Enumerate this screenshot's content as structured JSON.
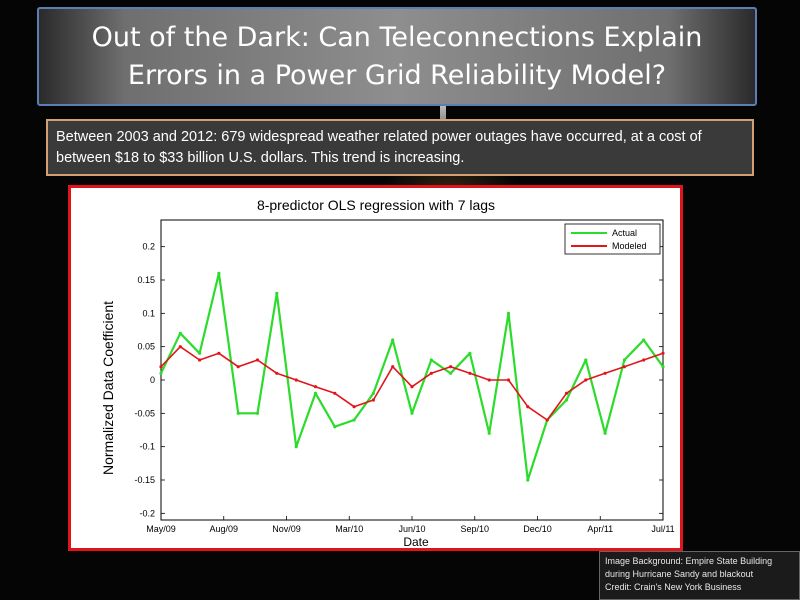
{
  "slide": {
    "title": "Out of the Dark: Can Teleconnections Explain Errors in a Power Grid Reliability Model?",
    "info": "Between  2003 and 2012: 679 widespread weather related power outages have occurred, at a cost of between $18 to $33 billion U.S. dollars. This trend is increasing.",
    "credit_lines": [
      "Image Background: Empire State Building",
      "during Hurricane Sandy and blackout",
      "Credit: Crain's New York Business"
    ]
  },
  "colors": {
    "actual": "#2bdc2b",
    "modeled": "#e2161a",
    "chart_border": "#e0141b",
    "info_border": "#d3a071",
    "title_border": "#5b7fb5"
  },
  "chart_data": {
    "type": "line",
    "title": "8-predictor OLS regression with 7 lags",
    "xlabel": "Date",
    "ylabel": "Normalized Data Coefficient",
    "xlim": [
      "May/09",
      "Jul/11"
    ],
    "ylim": [
      -0.21,
      0.24
    ],
    "x_ticks": [
      "May/09",
      "Aug/09",
      "Nov/09",
      "Mar/10",
      "Jun/10",
      "Sep/10",
      "Dec/10",
      "Apr/11",
      "Jul/11"
    ],
    "y_ticks": [
      "-0.2",
      "-0.15",
      "-0.1",
      "-0.05",
      "0",
      "0.05",
      "0.1",
      "0.15",
      "0.2"
    ],
    "legend_position": "top-right",
    "grid": false,
    "x": [
      "May/09",
      "Jun/09",
      "Jul/09",
      "Aug/09",
      "Sep/09",
      "Oct/09",
      "Nov/09",
      "Dec/09",
      "Jan/10",
      "Feb/10",
      "Mar/10",
      "Apr/10",
      "May/10",
      "Jun/10",
      "Jul/10",
      "Aug/10",
      "Sep/10",
      "Oct/10",
      "Nov/10",
      "Dec/10",
      "Jan/11",
      "Feb/11",
      "Mar/11",
      "Apr/11",
      "May/11",
      "Jun/11",
      "Jul/11"
    ],
    "series": [
      {
        "name": "Actual",
        "values": [
          0.01,
          0.07,
          0.04,
          0.16,
          -0.05,
          -0.05,
          0.13,
          -0.1,
          -0.02,
          -0.07,
          -0.06,
          -0.02,
          0.06,
          -0.05,
          0.03,
          0.01,
          0.04,
          -0.08,
          0.1,
          -0.15,
          -0.06,
          -0.03,
          0.03,
          -0.08,
          0.03,
          0.06,
          0.02
        ]
      },
      {
        "name": "Modeled",
        "values": [
          0.02,
          0.05,
          0.03,
          0.04,
          0.02,
          0.03,
          0.01,
          0.0,
          -0.01,
          -0.02,
          -0.04,
          -0.03,
          0.02,
          -0.01,
          0.01,
          0.02,
          0.01,
          0.0,
          0.0,
          -0.04,
          -0.06,
          -0.02,
          0.0,
          0.01,
          0.02,
          0.03,
          0.04
        ]
      }
    ]
  }
}
